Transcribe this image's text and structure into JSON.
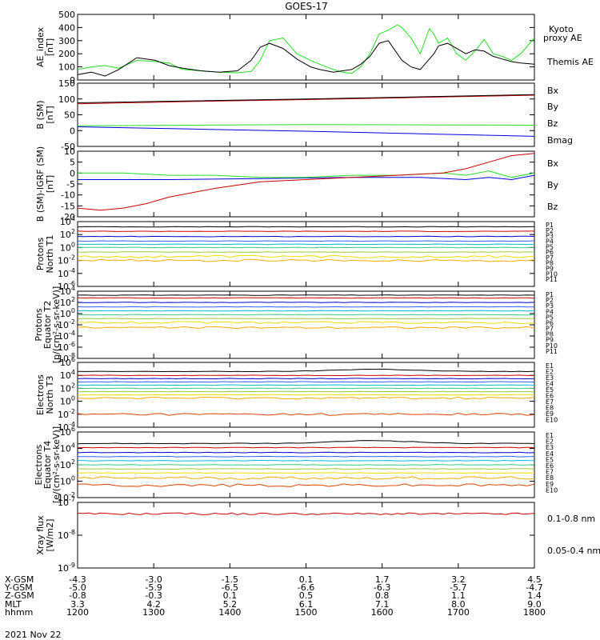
{
  "title": "GOES-17",
  "date_label": "2021 Nov 22",
  "ephemeris": {
    "row_labels": [
      "X-GSM",
      "Y-GSM",
      "Z-GSM",
      "MLT",
      "hhmm"
    ],
    "columns": [
      [
        "-4.3",
        "-5.0",
        "-0.8",
        "3.3",
        "1200"
      ],
      [
        "-3.0",
        "-5.9",
        "-0.3",
        "4.2",
        "1300"
      ],
      [
        "-1.5",
        "-6.5",
        "0.1",
        "5.2",
        "1400"
      ],
      [
        "0.1",
        "-6.6",
        "0.5",
        "6.1",
        "1500"
      ],
      [
        "1.7",
        "-6.3",
        "0.8",
        "7.1",
        "1600"
      ],
      [
        "3.2",
        "-5.7",
        "1.1",
        "8.0",
        "1700"
      ],
      [
        "4.5",
        "-4.7",
        "1.4",
        "9.0",
        "1800"
      ]
    ]
  },
  "colors": {
    "black": "#000000",
    "green": "#22dd22",
    "blue": "#0000dd",
    "red": "#cc0000",
    "channels": [
      "#000000",
      "#cc0000",
      "#0000cc",
      "#3060ff",
      "#00bbdd",
      "#33cc88",
      "#99cc33",
      "#eedd00",
      "#ffaa00",
      "#dd4400",
      "#bb0000"
    ]
  },
  "chart_data": [
    {
      "type": "line",
      "ylabel": [
        "AE_index",
        "[nT]"
      ],
      "ylim": [
        0,
        500
      ],
      "yticks": [
        "500",
        "400",
        "300",
        "200",
        "100",
        "0"
      ],
      "series": [
        {
          "name": "Kyoto\nproxy AE",
          "color": "#22dd22",
          "x": [
            0,
            0.03,
            0.06,
            0.09,
            0.13,
            0.17,
            0.2,
            0.23,
            0.27,
            0.31,
            0.35,
            0.38,
            0.4,
            0.42,
            0.45,
            0.48,
            0.51,
            0.53,
            0.56,
            0.58,
            0.6,
            0.62,
            0.64,
            0.66,
            0.68,
            0.7,
            0.71,
            0.73,
            0.75,
            0.77,
            0.78,
            0.79,
            0.81,
            0.83,
            0.85,
            0.87,
            0.89,
            0.91,
            0.93,
            0.95,
            0.97,
            1.0
          ],
          "y": [
            80,
            100,
            110,
            90,
            150,
            140,
            130,
            80,
            70,
            60,
            55,
            65,
            150,
            300,
            320,
            200,
            150,
            120,
            80,
            60,
            50,
            100,
            200,
            350,
            380,
            420,
            400,
            320,
            200,
            390,
            350,
            280,
            320,
            200,
            150,
            220,
            310,
            200,
            180,
            150,
            200,
            320
          ]
        },
        {
          "name": "Themis AE",
          "color": "#000000",
          "x": [
            0,
            0.03,
            0.06,
            0.09,
            0.13,
            0.17,
            0.2,
            0.23,
            0.27,
            0.31,
            0.35,
            0.38,
            0.4,
            0.42,
            0.45,
            0.48,
            0.51,
            0.53,
            0.56,
            0.58,
            0.6,
            0.62,
            0.64,
            0.66,
            0.68,
            0.7,
            0.71,
            0.73,
            0.75,
            0.77,
            0.78,
            0.79,
            0.81,
            0.83,
            0.85,
            0.87,
            0.89,
            0.91,
            0.93,
            0.95,
            0.97,
            1.0
          ],
          "y": [
            40,
            60,
            30,
            80,
            170,
            150,
            110,
            90,
            70,
            60,
            70,
            150,
            250,
            280,
            240,
            160,
            100,
            80,
            60,
            70,
            80,
            120,
            180,
            280,
            300,
            200,
            150,
            100,
            80,
            160,
            200,
            260,
            280,
            240,
            200,
            230,
            220,
            180,
            160,
            140,
            130,
            120
          ]
        }
      ],
      "legend": [
        {
          "text": "Kyoto",
          "color": "#22dd22"
        },
        {
          "text": "proxy AE",
          "color": "#22dd22"
        },
        {
          "text": "Themis AE",
          "color": "#000000"
        }
      ]
    },
    {
      "type": "line",
      "ylabel": [
        "B (SM)",
        "[nT]"
      ],
      "ylim": [
        -50,
        150
      ],
      "yticks": [
        "150",
        "100",
        "50",
        "0",
        "-50"
      ],
      "series": [
        {
          "name": "Bx",
          "color": "#0000dd",
          "x": [
            0,
            0.25,
            0.5,
            0.75,
            1.0
          ],
          "y": [
            12,
            5,
            -2,
            -10,
            -18
          ]
        },
        {
          "name": "By",
          "color": "#22dd22",
          "x": [
            0,
            0.25,
            0.5,
            0.75,
            1.0
          ],
          "y": [
            15,
            17,
            19,
            18,
            17
          ]
        },
        {
          "name": "Bz",
          "color": "#cc0000",
          "x": [
            0,
            0.25,
            0.5,
            0.75,
            1.0
          ],
          "y": [
            85,
            92,
            98,
            105,
            112
          ]
        },
        {
          "name": "Bmag",
          "color": "#000000",
          "x": [
            0,
            0.25,
            0.5,
            0.75,
            1.0
          ],
          "y": [
            88,
            94,
            100,
            107,
            114
          ]
        }
      ],
      "legend": [
        {
          "text": "Bx",
          "color": "#0000dd"
        },
        {
          "text": "By",
          "color": "#22dd22"
        },
        {
          "text": "Bz",
          "color": "#cc0000"
        },
        {
          "text": "Bmag",
          "color": "#000000"
        }
      ]
    },
    {
      "type": "line",
      "ylabel": [
        "B (SM)-IGRF (SM)",
        "[nT]"
      ],
      "ylim": [
        -20,
        10
      ],
      "yticks": [
        "10",
        "5",
        "0",
        "-5",
        "-10",
        "-15",
        "-20"
      ],
      "series": [
        {
          "name": "Bx",
          "color": "#0000dd",
          "x": [
            0,
            0.2,
            0.4,
            0.6,
            0.75,
            0.85,
            0.9,
            0.95,
            1.0
          ],
          "y": [
            -3,
            -3,
            -2.5,
            -2,
            -2,
            -3,
            -2,
            -3,
            -1
          ]
        },
        {
          "name": "By",
          "color": "#22dd22",
          "x": [
            0,
            0.1,
            0.2,
            0.3,
            0.4,
            0.5,
            0.6,
            0.7,
            0.8,
            0.85,
            0.9,
            0.95,
            1.0
          ],
          "y": [
            0,
            0,
            -1,
            -1,
            -2,
            -2,
            -1,
            -1,
            0,
            -1,
            1,
            -2,
            0
          ]
        },
        {
          "name": "Bz",
          "color": "#cc0000",
          "x": [
            0,
            0.05,
            0.1,
            0.15,
            0.2,
            0.3,
            0.4,
            0.5,
            0.6,
            0.7,
            0.8,
            0.85,
            0.9,
            0.95,
            1.0
          ],
          "y": [
            -16,
            -17,
            -16,
            -14,
            -11,
            -7,
            -4,
            -3,
            -2,
            -1,
            0,
            2,
            5,
            8,
            9
          ]
        }
      ],
      "legend": [
        {
          "text": "Bx",
          "color": "#0000dd"
        },
        {
          "text": "By",
          "color": "#22dd22"
        },
        {
          "text": "Bz",
          "color": "#cc0000"
        }
      ]
    },
    {
      "type": "line",
      "log": true,
      "ylabel": [
        "Protons",
        "North T1"
      ],
      "ylim": [
        -6,
        4
      ],
      "yticks_exp": [
        4,
        2,
        0,
        -2,
        -4,
        -6
      ],
      "levels": [
        3.2,
        2.5,
        1.7,
        1.0,
        0.5,
        0.0,
        -0.7,
        -1.4,
        -2.0
      ],
      "legend": [
        {
          "text": "P1",
          "color": "#000000"
        },
        {
          "text": "P2",
          "color": "#cc0000"
        },
        {
          "text": "P3",
          "color": "#0000cc"
        },
        {
          "text": "P4",
          "color": "#3060ff"
        },
        {
          "text": "P5",
          "color": "#00bbdd"
        },
        {
          "text": "P6",
          "color": "#33cc88"
        },
        {
          "text": "P7",
          "color": "#99cc33"
        },
        {
          "text": "P8",
          "color": "#eedd00"
        },
        {
          "text": "P9",
          "color": "#ffaa00"
        },
        {
          "text": "P10",
          "color": "#dd4400"
        },
        {
          "text": "P11",
          "color": "#bb0000"
        }
      ]
    },
    {
      "type": "line",
      "log": true,
      "ylabel": [
        "Protons",
        "Equator T2",
        "[p/(cm²-s-sr-keV)]"
      ],
      "ylim": [
        -8,
        4
      ],
      "yticks_exp": [
        4,
        2,
        0,
        -2,
        -4,
        -6,
        -8
      ],
      "levels": [
        3.3,
        2.8,
        2.0,
        1.2,
        0.5,
        -0.2,
        -0.9,
        -1.6,
        -2.5
      ],
      "legend": [
        {
          "text": "P1",
          "color": "#000000"
        },
        {
          "text": "P2",
          "color": "#cc0000"
        },
        {
          "text": "P3",
          "color": "#0000cc"
        },
        {
          "text": "P4",
          "color": "#3060ff"
        },
        {
          "text": "P5",
          "color": "#00bbdd"
        },
        {
          "text": "P6",
          "color": "#33cc88"
        },
        {
          "text": "P7",
          "color": "#99cc33"
        },
        {
          "text": "P8",
          "color": "#eedd00"
        },
        {
          "text": "P9",
          "color": "#ffaa00"
        },
        {
          "text": "P10",
          "color": "#dd4400"
        },
        {
          "text": "P11",
          "color": "#bb0000"
        }
      ]
    },
    {
      "type": "line",
      "log": true,
      "ylabel": [
        "Electrons",
        "North T3"
      ],
      "ylim": [
        -4,
        6
      ],
      "yticks_exp": [
        6,
        4,
        2,
        0,
        -2,
        -4
      ],
      "levels": [
        4.6,
        4.0,
        3.5,
        3.0,
        2.5,
        2.0,
        1.5,
        1.0,
        0.5,
        -2.0
      ],
      "legend": [
        {
          "text": "E1",
          "color": "#000000"
        },
        {
          "text": "E2",
          "color": "#cc0000"
        },
        {
          "text": "E3",
          "color": "#0000cc"
        },
        {
          "text": "E4",
          "color": "#3060ff"
        },
        {
          "text": "E5",
          "color": "#00bbdd"
        },
        {
          "text": "E6",
          "color": "#33cc88"
        },
        {
          "text": "E7",
          "color": "#99cc33"
        },
        {
          "text": "E8",
          "color": "#eedd00"
        },
        {
          "text": "E9",
          "color": "#dd4400"
        },
        {
          "text": "E10",
          "color": "#bb0000"
        }
      ]
    },
    {
      "type": "line",
      "log": true,
      "ylabel": [
        "Electrons",
        "Equator T4",
        "[e/(cm²-s-sr-keV)]"
      ],
      "ylim": [
        -2,
        6
      ],
      "yticks_exp": [
        6,
        4,
        2,
        0,
        -2
      ],
      "levels": [
        4.6,
        4.1,
        3.5,
        3.0,
        2.5,
        2.0,
        1.5,
        1.0,
        0.4,
        -0.5
      ],
      "legend": [
        {
          "text": "E1",
          "color": "#000000"
        },
        {
          "text": "E2",
          "color": "#cc0000"
        },
        {
          "text": "E3",
          "color": "#0000cc"
        },
        {
          "text": "E4",
          "color": "#3060ff"
        },
        {
          "text": "E5",
          "color": "#00bbdd"
        },
        {
          "text": "E6",
          "color": "#33cc88"
        },
        {
          "text": "E7",
          "color": "#99cc33"
        },
        {
          "text": "E8",
          "color": "#eedd00"
        },
        {
          "text": "E9",
          "color": "#dd4400"
        },
        {
          "text": "E10",
          "color": "#bb0000"
        }
      ]
    },
    {
      "type": "line",
      "log": true,
      "ylabel": [
        "Xray flux",
        "[W/m2]"
      ],
      "ylim": [
        -9,
        -7
      ],
      "yticks_exp": [
        -7,
        -8,
        -9
      ],
      "series": [
        {
          "name": "0.1-0.8 nm",
          "color": "#cc0000",
          "level": -7.35
        }
      ],
      "legend": [
        {
          "text": "0.1-0.8 nm",
          "color": "#cc0000"
        },
        {
          "text": "0.05-0.4 nm",
          "color": "#0000dd"
        }
      ]
    }
  ]
}
